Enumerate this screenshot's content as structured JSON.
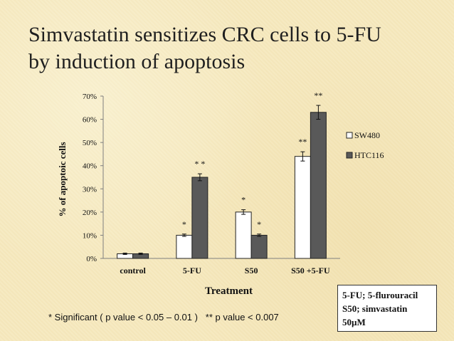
{
  "slide": {
    "title_lines": [
      "Simvastatin sensitizes CRC cells to 5-FU",
      "by induction of apoptosis"
    ]
  },
  "colors": {
    "background": "#f6e9bf",
    "series_sw480_fill": "#ffffff",
    "series_htc116_fill": "#595959",
    "axis": "#7f7f7f"
  },
  "chart_data": {
    "type": "bar",
    "title": "",
    "xlabel": "Treatment",
    "ylabel": "% of apoptoic cells",
    "ylim": [
      0,
      70
    ],
    "ytick_labels": [
      "0%",
      "10%",
      "20%",
      "30%",
      "40%",
      "50%",
      "60%",
      "70%"
    ],
    "categories": [
      "control",
      "5-FU",
      "S50",
      "S50 +5-FU"
    ],
    "series": [
      {
        "name": "SW480",
        "values": [
          2,
          10,
          20,
          44
        ],
        "errors": [
          0.3,
          0.5,
          1,
          2
        ],
        "annotations": [
          "",
          "*",
          "*",
          "**"
        ]
      },
      {
        "name": "HTC116",
        "values": [
          2,
          35,
          10,
          63
        ],
        "errors": [
          0.3,
          1.5,
          0.5,
          3
        ],
        "annotations": [
          "",
          "* *",
          "*",
          "**"
        ]
      }
    ],
    "legend_position": "right"
  },
  "footnote": {
    "single": "* Significant ( p value < 0.05 – 0.01 )",
    "double": "** p value < 0.007"
  },
  "abbreviations": [
    "5-FU; 5-flurouracil",
    "S50; simvastatin",
    "50µM"
  ]
}
